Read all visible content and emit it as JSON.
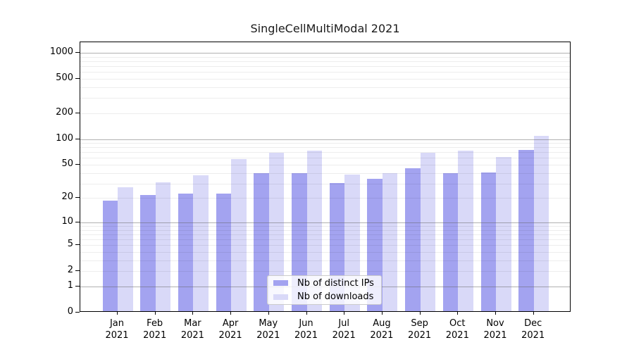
{
  "title": "SingleCellMultiModal 2021",
  "colors": {
    "ips": "#a3a3f0",
    "downloads": "#d9d9f8",
    "grid_major": "#8c8c8c",
    "grid_minor": "#ededed",
    "axis": "#000000"
  },
  "legend": {
    "items": [
      {
        "label": "Nb of distinct IPs",
        "color_key": "ips"
      },
      {
        "label": "Nb of downloads",
        "color_key": "downloads"
      }
    ]
  },
  "chart_data": {
    "type": "bar",
    "scale": "log1p",
    "title": "SingleCellMultiModal 2021",
    "categories": [
      "Jan 2021",
      "Feb 2021",
      "Mar 2021",
      "Apr 2021",
      "May 2021",
      "Jun 2021",
      "Jul 2021",
      "Aug 2021",
      "Sep 2021",
      "Oct 2021",
      "Nov 2021",
      "Dec 2021"
    ],
    "series": [
      {
        "name": "Nb of distinct IPs",
        "values": [
          18,
          21,
          22,
          22,
          38,
          38,
          29,
          33,
          44,
          38,
          39,
          72
        ]
      },
      {
        "name": "Nb of downloads",
        "values": [
          26,
          30,
          36,
          56,
          66,
          71,
          37,
          38,
          66,
          71,
          59,
          104
        ]
      }
    ],
    "yticks": [
      0,
      1,
      2,
      5,
      10,
      20,
      50,
      100,
      200,
      500,
      1000
    ],
    "ylim": [
      0,
      1320
    ],
    "xlabel": "",
    "ylabel": "",
    "grid": "on",
    "legend_position": "lower center"
  }
}
